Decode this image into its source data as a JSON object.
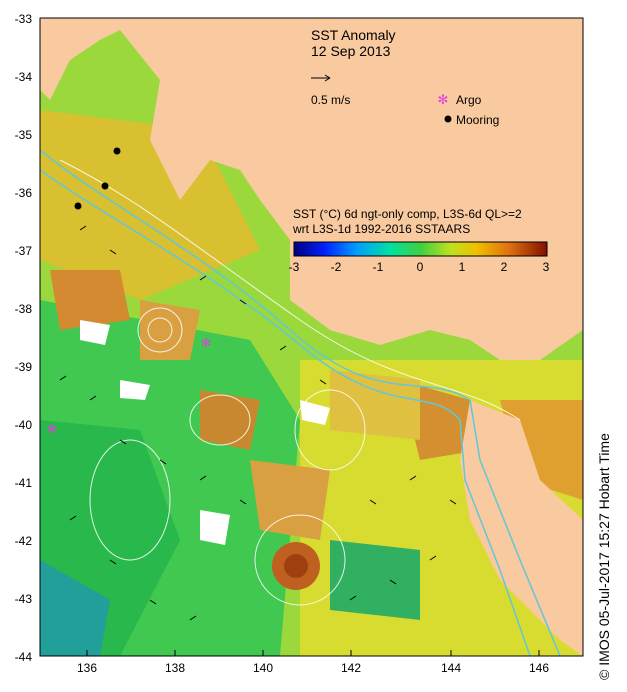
{
  "title": "SST Anomaly",
  "date": "12 Sep 2013",
  "vector_scale_label": "0.5 m/s",
  "legend": {
    "argo": "Argo",
    "mooring": "Mooring",
    "argo_color": "#e040e0",
    "mooring_color": "#000000"
  },
  "colorbar": {
    "title_line1": "SST (°C) 6d ngt-only comp, L3S-6d QL>=2",
    "title_line2": "wrt L3S-1d 1992-2016 SSTAARS",
    "ticks": [
      "-3",
      "-2",
      "-1",
      "0",
      "1",
      "2",
      "3"
    ],
    "range": [
      -3,
      3
    ]
  },
  "axes": {
    "x_ticks": [
      "136",
      "138",
      "140",
      "142",
      "144",
      "146"
    ],
    "y_ticks": [
      "-33",
      "-34",
      "-35",
      "-36",
      "-37",
      "-38",
      "-39",
      "-40",
      "-41",
      "-42",
      "-43",
      "-44"
    ],
    "lon_range": [
      135,
      147
    ],
    "lat_range": [
      -44,
      -33
    ]
  },
  "credit": "© IMOS 05-Jul-2017 15:27 Hobart Time",
  "colors": {
    "land": "#f9c9a0",
    "frame": "#000000"
  }
}
